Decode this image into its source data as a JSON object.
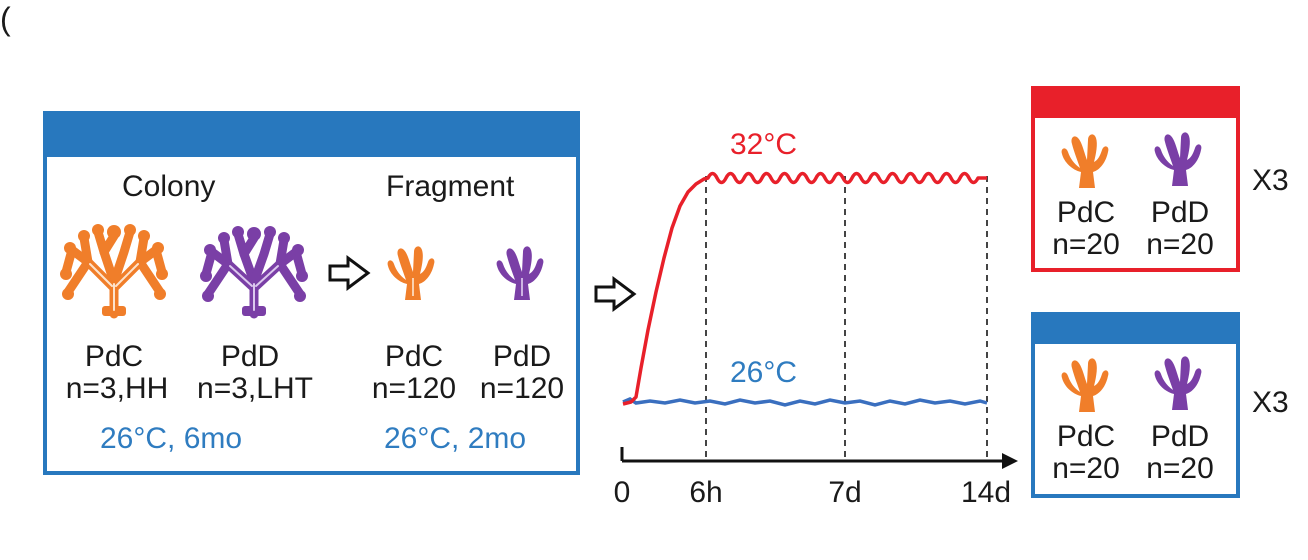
{
  "corner_mark": "(",
  "colors": {
    "blue": "#2878be",
    "red": "#e8202a",
    "orange": "#f07e2a",
    "purple": "#7a3fa6",
    "text_blue": "#2f7cc0"
  },
  "left_panel": {
    "colony_title": "Colony",
    "fragment_title": "Fragment",
    "colony_pdc_name": "PdC",
    "colony_pdc_n": "n=3,HH",
    "colony_pdd_name": "PdD",
    "colony_pdd_n": "n=3,LHT",
    "fragment_pdc_name": "PdC",
    "fragment_pdc_n": "n=120",
    "fragment_pdd_name": "PdD",
    "fragment_pdd_n": "n=120",
    "colony_condition": "26°C, 6mo",
    "fragment_condition": "26°C, 2mo"
  },
  "timeline": {
    "hot_label": "32°C",
    "control_label": "26°C",
    "ticks": [
      "0",
      "6h",
      "7d",
      "14d"
    ]
  },
  "hot_tank": {
    "pdc_name": "PdC",
    "pdc_n": "n=20",
    "pdd_name": "PdD",
    "pdd_n": "n=20",
    "replicates": "X3"
  },
  "control_tank": {
    "pdc_name": "PdC",
    "pdc_n": "n=20",
    "pdd_name": "PdD",
    "pdd_n": "n=20",
    "replicates": "X3"
  }
}
